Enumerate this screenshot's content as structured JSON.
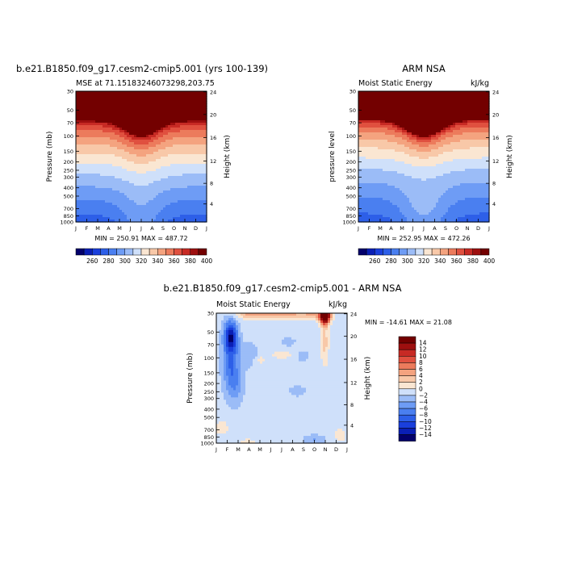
{
  "chart_data": [
    {
      "type": "heatmap",
      "title": "b.e21.B1850.f09_g17.cesm2-cmip5.001 (yrs 100-139)",
      "subtitle_left": "MSE at 71.15183246073298,203.75",
      "subtitle_right": "",
      "xlabel": "",
      "ylabel": "Pressure (mb)",
      "y2label": "Height (km)",
      "x_ticks": [
        "J",
        "F",
        "M",
        "A",
        "M",
        "J",
        "J",
        "A",
        "S",
        "O",
        "N",
        "D",
        "J"
      ],
      "y_ticks": [
        "30",
        "50",
        "70",
        "100",
        "150",
        "200",
        "250",
        "300",
        "400",
        "500",
        "700",
        "850",
        "1000"
      ],
      "y2_ticks": [
        "24",
        "20",
        "16",
        "12",
        "8",
        "4"
      ],
      "stats": "MIN = 250.91  MAX = 487.72",
      "contour_levels": [
        260,
        270,
        280,
        290,
        300,
        310,
        320,
        330,
        340,
        350,
        360,
        370,
        380,
        390,
        400
      ],
      "colorbar_labels": [
        "260",
        "280",
        "300",
        "320",
        "340",
        "360",
        "380",
        "400"
      ],
      "variant": "model"
    },
    {
      "type": "heatmap",
      "title": "ARM NSA",
      "subtitle_left": "Moist Static Energy",
      "subtitle_right": "kJ/kg",
      "xlabel": "",
      "ylabel": "pressure level",
      "y2label": "Height (km)",
      "x_ticks": [
        "J",
        "F",
        "M",
        "A",
        "M",
        "J",
        "J",
        "A",
        "S",
        "O",
        "N",
        "D",
        "J"
      ],
      "y_ticks": [
        "30",
        "50",
        "70",
        "100",
        "150",
        "200",
        "250",
        "300",
        "400",
        "500",
        "700",
        "850",
        "1000"
      ],
      "y2_ticks": [
        "24",
        "20",
        "16",
        "12",
        "8",
        "4"
      ],
      "stats": "MIN = 252.95  MAX = 472.26",
      "contour_levels": [
        260,
        270,
        280,
        290,
        300,
        310,
        320,
        330,
        340,
        350,
        360,
        370,
        380,
        390,
        400
      ],
      "colorbar_labels": [
        "260",
        "280",
        "300",
        "320",
        "340",
        "360",
        "380",
        "400"
      ],
      "variant": "obs"
    },
    {
      "type": "heatmap",
      "title": "b.e21.B1850.f09_g17.cesm2-cmip5.001 - ARM NSA",
      "subtitle_left": "Moist Static Energy",
      "subtitle_right": "kJ/kg",
      "xlabel": "",
      "ylabel": "Pressure (mb)",
      "y2label": "Height (km)",
      "x_ticks": [
        "J",
        "F",
        "M",
        "A",
        "M",
        "J",
        "J",
        "A",
        "S",
        "O",
        "N",
        "D",
        "J"
      ],
      "y_ticks": [
        "30",
        "50",
        "70",
        "100",
        "150",
        "200",
        "250",
        "300",
        "400",
        "500",
        "700",
        "850",
        "1000"
      ],
      "y2_ticks": [
        "24",
        "20",
        "16",
        "12",
        "8",
        "4"
      ],
      "stats": "MIN = -14.61  MAX =  21.08",
      "contour_levels": [
        -14,
        -12,
        -10,
        -8,
        -6,
        -4,
        -2,
        0,
        2,
        4,
        6,
        8,
        10,
        12,
        14
      ],
      "colorbar_labels": [
        "14",
        "12",
        "10",
        "8",
        "6",
        "4",
        "2",
        "0",
        "−2",
        "−4",
        "−6",
        "−8",
        "−10",
        "−12",
        "−14"
      ],
      "variant": "diff"
    }
  ],
  "colors": [
    "#03006b",
    "#0a1fb5",
    "#1a3fdc",
    "#2d5fe8",
    "#4a7ff0",
    "#6e9cf5",
    "#9bbcf7",
    "#cfe0fa",
    "#fae6d2",
    "#f8c8a8",
    "#f4a37f",
    "#ec7b5c",
    "#e0503f",
    "#c72a24",
    "#9e0f0f",
    "#730000"
  ]
}
